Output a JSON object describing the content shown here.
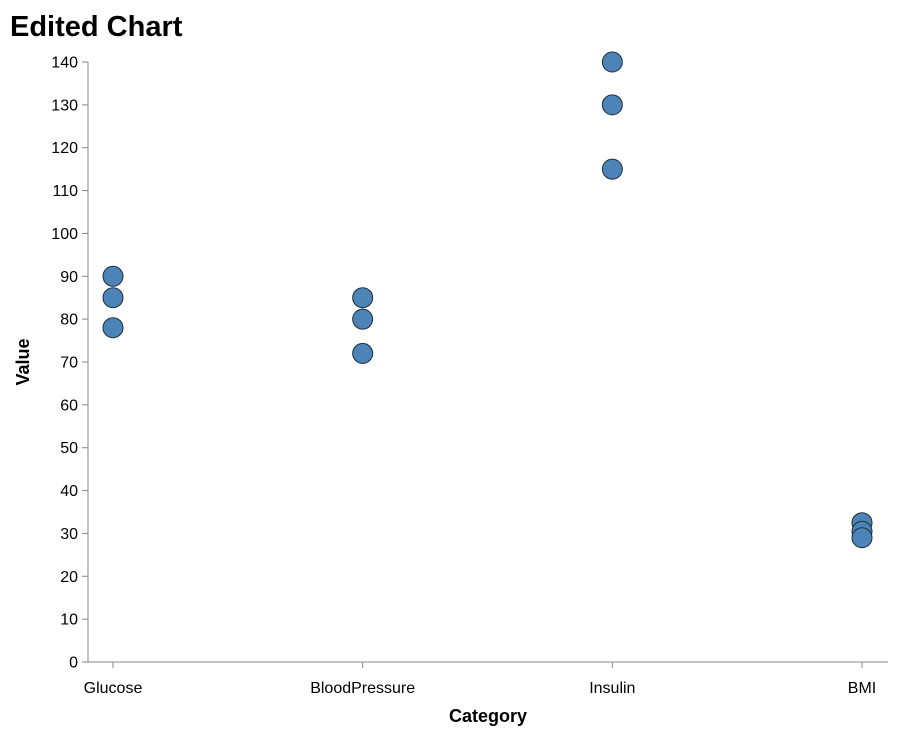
{
  "chart_data": {
    "type": "scatter",
    "title": "Edited Chart",
    "xlabel": "Category",
    "ylabel": "Value",
    "categories": [
      "Glucose",
      "BloodPressure",
      "Insulin",
      "BMI"
    ],
    "points": [
      {
        "x": "Glucose",
        "y": 90
      },
      {
        "x": "Glucose",
        "y": 85
      },
      {
        "x": "Glucose",
        "y": 78
      },
      {
        "x": "BloodPressure",
        "y": 85
      },
      {
        "x": "BloodPressure",
        "y": 80
      },
      {
        "x": "BloodPressure",
        "y": 72
      },
      {
        "x": "Insulin",
        "y": 140
      },
      {
        "x": "Insulin",
        "y": 130
      },
      {
        "x": "Insulin",
        "y": 115
      },
      {
        "x": "BMI",
        "y": 32.5
      },
      {
        "x": "BMI",
        "y": 30.5
      },
      {
        "x": "BMI",
        "y": 29
      }
    ],
    "ylim": [
      0,
      140
    ],
    "yticks": [
      0,
      10,
      20,
      30,
      40,
      50,
      60,
      70,
      80,
      90,
      100,
      110,
      120,
      130,
      140
    ],
    "grid": false,
    "colors": {
      "point": "#4c84b8"
    }
  }
}
